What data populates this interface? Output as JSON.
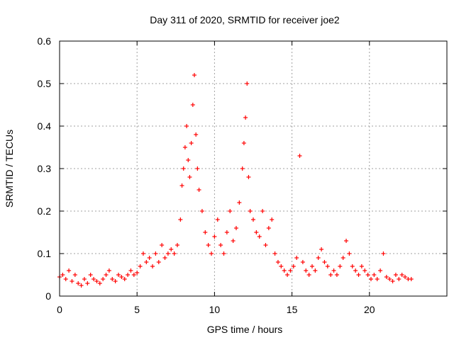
{
  "chart_data": {
    "type": "scatter",
    "title": "Day 311 of 2020, SRMTID for receiver joe2",
    "xlabel": "GPS time / hours",
    "ylabel": "SRMTID / TECUs",
    "xlim": [
      0,
      25
    ],
    "ylim": [
      0,
      0.6
    ],
    "xticks": [
      0,
      5,
      10,
      15,
      20
    ],
    "yticks": [
      0,
      0.1,
      0.2,
      0.3,
      0.4,
      0.5,
      0.6
    ],
    "xtick_labels": [
      "0",
      "5",
      "10",
      "15",
      "20"
    ],
    "ytick_labels": [
      "0",
      "0.1",
      "0.2",
      "0.3",
      "0.4",
      "0.5",
      "0.6"
    ],
    "grid": true,
    "marker": "+",
    "color": "#ff0000",
    "series": [
      {
        "name": "SRMTID joe2",
        "x": [
          0.0,
          0.2,
          0.4,
          0.6,
          0.8,
          1.0,
          1.2,
          1.4,
          1.6,
          1.8,
          2.0,
          2.2,
          2.4,
          2.6,
          2.8,
          3.0,
          3.2,
          3.4,
          3.6,
          3.8,
          4.0,
          4.2,
          4.4,
          4.6,
          4.8,
          5.0,
          5.2,
          5.4,
          5.6,
          5.8,
          6.0,
          6.2,
          6.4,
          6.6,
          6.8,
          7.0,
          7.2,
          7.4,
          7.6,
          7.8,
          7.9,
          8.0,
          8.1,
          8.2,
          8.3,
          8.4,
          8.5,
          8.6,
          8.7,
          8.8,
          8.9,
          9.0,
          9.2,
          9.4,
          9.6,
          9.8,
          10.0,
          10.2,
          10.4,
          10.6,
          10.8,
          11.0,
          11.2,
          11.4,
          11.6,
          11.8,
          11.9,
          12.0,
          12.1,
          12.2,
          12.3,
          12.5,
          12.7,
          12.9,
          13.1,
          13.3,
          13.5,
          13.7,
          13.9,
          14.1,
          14.3,
          14.5,
          14.7,
          14.9,
          15.1,
          15.3,
          15.5,
          15.7,
          15.9,
          16.1,
          16.3,
          16.5,
          16.7,
          16.9,
          17.1,
          17.3,
          17.5,
          17.7,
          17.9,
          18.1,
          18.3,
          18.5,
          18.7,
          18.9,
          19.1,
          19.3,
          19.5,
          19.7,
          19.9,
          20.1,
          20.3,
          20.5,
          20.7,
          20.9,
          21.1,
          21.3,
          21.5,
          21.7,
          21.9,
          22.1,
          22.3,
          22.5,
          22.7
        ],
        "y": [
          0.045,
          0.05,
          0.04,
          0.06,
          0.035,
          0.05,
          0.03,
          0.025,
          0.04,
          0.03,
          0.05,
          0.04,
          0.035,
          0.03,
          0.04,
          0.05,
          0.06,
          0.04,
          0.035,
          0.05,
          0.045,
          0.04,
          0.05,
          0.06,
          0.05,
          0.055,
          0.07,
          0.1,
          0.08,
          0.09,
          0.07,
          0.1,
          0.08,
          0.12,
          0.09,
          0.1,
          0.11,
          0.1,
          0.12,
          0.18,
          0.26,
          0.3,
          0.35,
          0.4,
          0.32,
          0.28,
          0.36,
          0.45,
          0.52,
          0.38,
          0.3,
          0.25,
          0.2,
          0.15,
          0.12,
          0.1,
          0.14,
          0.18,
          0.12,
          0.1,
          0.15,
          0.2,
          0.13,
          0.16,
          0.22,
          0.3,
          0.36,
          0.42,
          0.5,
          0.28,
          0.2,
          0.18,
          0.15,
          0.14,
          0.2,
          0.12,
          0.16,
          0.18,
          0.1,
          0.08,
          0.07,
          0.06,
          0.05,
          0.06,
          0.07,
          0.09,
          0.33,
          0.08,
          0.06,
          0.05,
          0.07,
          0.06,
          0.09,
          0.11,
          0.08,
          0.07,
          0.05,
          0.06,
          0.05,
          0.07,
          0.09,
          0.13,
          0.1,
          0.07,
          0.06,
          0.05,
          0.07,
          0.06,
          0.05,
          0.04,
          0.05,
          0.04,
          0.06,
          0.1,
          0.045,
          0.04,
          0.035,
          0.05,
          0.04,
          0.05,
          0.045,
          0.04,
          0.04
        ]
      }
    ]
  }
}
